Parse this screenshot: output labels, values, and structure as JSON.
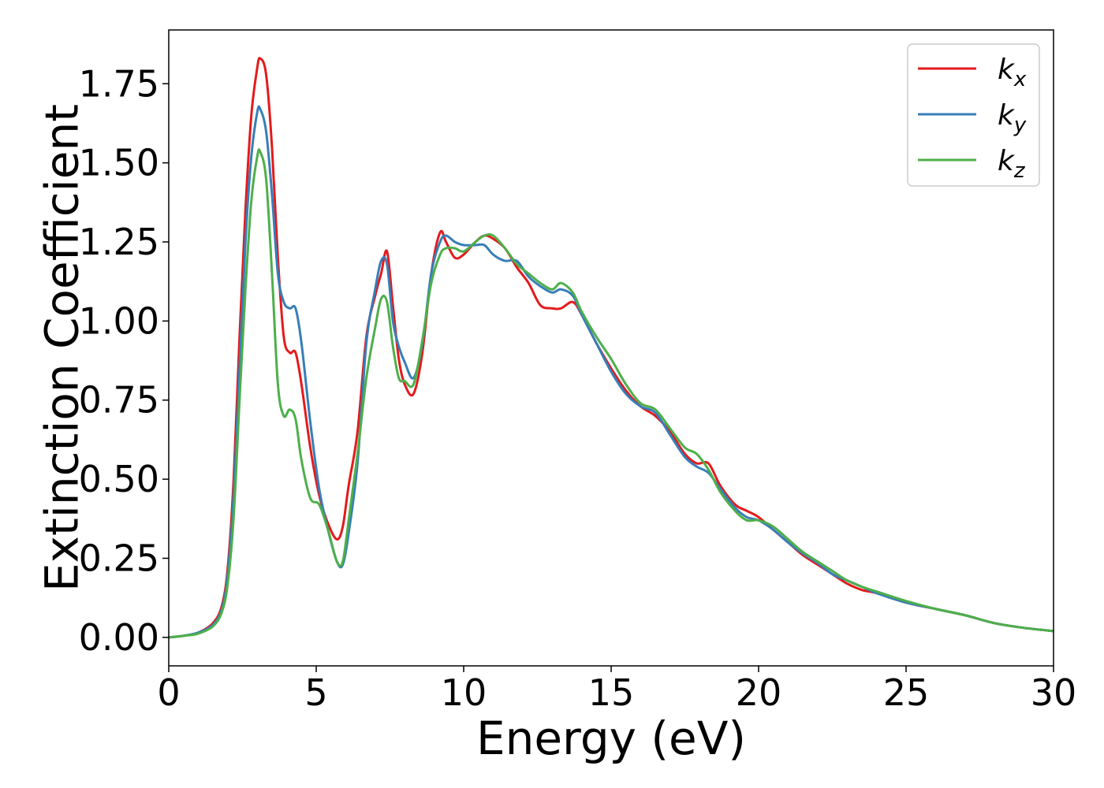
{
  "chart_data": {
    "type": "line",
    "title": "",
    "xlabel": "Energy (eV)",
    "ylabel": "Extinction Coefficient",
    "xlim": [
      0,
      30
    ],
    "ylim": [
      -0.09,
      1.92
    ],
    "xticks": [
      0,
      5,
      10,
      15,
      20,
      25,
      30
    ],
    "xtick_labels": [
      "0",
      "5",
      "10",
      "15",
      "20",
      "25",
      "30"
    ],
    "yticks": [
      0.0,
      0.25,
      0.5,
      0.75,
      1.0,
      1.25,
      1.5,
      1.75
    ],
    "ytick_labels": [
      "0.00",
      "0.25",
      "0.50",
      "0.75",
      "1.00",
      "1.25",
      "1.50",
      "1.75"
    ],
    "grid": false,
    "legend_position": "top-right",
    "series": [
      {
        "name": "k_x",
        "label_main": "k",
        "label_sub": "x",
        "color": "#e41a1c",
        "points": [
          [
            0,
            0
          ],
          [
            0.5,
            0.005
          ],
          [
            1.0,
            0.015
          ],
          [
            1.5,
            0.045
          ],
          [
            1.8,
            0.1
          ],
          [
            2.0,
            0.22
          ],
          [
            2.2,
            0.5
          ],
          [
            2.4,
            0.95
          ],
          [
            2.6,
            1.35
          ],
          [
            2.8,
            1.65
          ],
          [
            3.0,
            1.8
          ],
          [
            3.1,
            1.83
          ],
          [
            3.3,
            1.78
          ],
          [
            3.5,
            1.55
          ],
          [
            3.7,
            1.2
          ],
          [
            3.9,
            0.95
          ],
          [
            4.1,
            0.9
          ],
          [
            4.3,
            0.9
          ],
          [
            4.5,
            0.8
          ],
          [
            4.8,
            0.6
          ],
          [
            5.1,
            0.45
          ],
          [
            5.4,
            0.36
          ],
          [
            5.7,
            0.31
          ],
          [
            5.9,
            0.35
          ],
          [
            6.1,
            0.48
          ],
          [
            6.4,
            0.65
          ],
          [
            6.7,
            0.95
          ],
          [
            7.0,
            1.08
          ],
          [
            7.2,
            1.15
          ],
          [
            7.4,
            1.22
          ],
          [
            7.6,
            1.05
          ],
          [
            7.8,
            0.88
          ],
          [
            8.0,
            0.8
          ],
          [
            8.3,
            0.77
          ],
          [
            8.6,
            0.9
          ],
          [
            8.9,
            1.15
          ],
          [
            9.2,
            1.28
          ],
          [
            9.4,
            1.25
          ],
          [
            9.7,
            1.2
          ],
          [
            10.0,
            1.21
          ],
          [
            10.4,
            1.25
          ],
          [
            10.7,
            1.27
          ],
          [
            11.0,
            1.26
          ],
          [
            11.4,
            1.23
          ],
          [
            11.8,
            1.17
          ],
          [
            12.2,
            1.12
          ],
          [
            12.6,
            1.05
          ],
          [
            13.0,
            1.04
          ],
          [
            13.3,
            1.04
          ],
          [
            13.7,
            1.06
          ],
          [
            14.0,
            1.02
          ],
          [
            14.5,
            0.93
          ],
          [
            15.0,
            0.85
          ],
          [
            15.5,
            0.78
          ],
          [
            16.0,
            0.73
          ],
          [
            16.5,
            0.7
          ],
          [
            17.0,
            0.65
          ],
          [
            17.5,
            0.58
          ],
          [
            17.9,
            0.55
          ],
          [
            18.3,
            0.55
          ],
          [
            18.7,
            0.48
          ],
          [
            19.2,
            0.42
          ],
          [
            19.6,
            0.4
          ],
          [
            20.0,
            0.38
          ],
          [
            20.5,
            0.34
          ],
          [
            21.0,
            0.3
          ],
          [
            21.5,
            0.26
          ],
          [
            22.0,
            0.23
          ],
          [
            22.5,
            0.2
          ],
          [
            23.0,
            0.17
          ],
          [
            23.5,
            0.15
          ],
          [
            24.0,
            0.14
          ],
          [
            25.0,
            0.11
          ],
          [
            26.0,
            0.09
          ],
          [
            27.0,
            0.07
          ],
          [
            28.0,
            0.045
          ],
          [
            29.0,
            0.03
          ],
          [
            30.0,
            0.02
          ]
        ]
      },
      {
        "name": "k_y",
        "label_main": "k",
        "label_sub": "y",
        "color": "#377eb8",
        "points": [
          [
            0,
            0
          ],
          [
            0.5,
            0.005
          ],
          [
            1.0,
            0.015
          ],
          [
            1.5,
            0.04
          ],
          [
            1.8,
            0.09
          ],
          [
            2.0,
            0.2
          ],
          [
            2.2,
            0.45
          ],
          [
            2.4,
            0.85
          ],
          [
            2.6,
            1.25
          ],
          [
            2.8,
            1.52
          ],
          [
            3.0,
            1.66
          ],
          [
            3.1,
            1.67
          ],
          [
            3.3,
            1.6
          ],
          [
            3.5,
            1.4
          ],
          [
            3.7,
            1.15
          ],
          [
            3.9,
            1.06
          ],
          [
            4.1,
            1.04
          ],
          [
            4.3,
            1.04
          ],
          [
            4.5,
            0.93
          ],
          [
            4.8,
            0.68
          ],
          [
            5.1,
            0.47
          ],
          [
            5.4,
            0.34
          ],
          [
            5.7,
            0.24
          ],
          [
            5.9,
            0.23
          ],
          [
            6.1,
            0.33
          ],
          [
            6.4,
            0.55
          ],
          [
            6.7,
            0.93
          ],
          [
            7.0,
            1.1
          ],
          [
            7.2,
            1.19
          ],
          [
            7.4,
            1.18
          ],
          [
            7.6,
            1.0
          ],
          [
            7.8,
            0.92
          ],
          [
            8.0,
            0.87
          ],
          [
            8.3,
            0.82
          ],
          [
            8.6,
            0.93
          ],
          [
            8.9,
            1.15
          ],
          [
            9.2,
            1.25
          ],
          [
            9.4,
            1.27
          ],
          [
            9.7,
            1.25
          ],
          [
            10.0,
            1.24
          ],
          [
            10.4,
            1.24
          ],
          [
            10.7,
            1.24
          ],
          [
            11.0,
            1.21
          ],
          [
            11.4,
            1.19
          ],
          [
            11.8,
            1.19
          ],
          [
            12.2,
            1.14
          ],
          [
            12.6,
            1.11
          ],
          [
            13.0,
            1.09
          ],
          [
            13.3,
            1.1
          ],
          [
            13.7,
            1.08
          ],
          [
            14.0,
            1.02
          ],
          [
            14.5,
            0.93
          ],
          [
            15.0,
            0.84
          ],
          [
            15.5,
            0.77
          ],
          [
            16.0,
            0.73
          ],
          [
            16.5,
            0.71
          ],
          [
            17.0,
            0.64
          ],
          [
            17.5,
            0.57
          ],
          [
            17.9,
            0.54
          ],
          [
            18.3,
            0.52
          ],
          [
            18.7,
            0.47
          ],
          [
            19.2,
            0.41
          ],
          [
            19.6,
            0.38
          ],
          [
            20.0,
            0.37
          ],
          [
            20.5,
            0.34
          ],
          [
            21.0,
            0.3
          ],
          [
            21.5,
            0.265
          ],
          [
            22.0,
            0.235
          ],
          [
            22.5,
            0.2
          ],
          [
            23.0,
            0.18
          ],
          [
            23.5,
            0.16
          ],
          [
            24.0,
            0.14
          ],
          [
            25.0,
            0.11
          ],
          [
            26.0,
            0.09
          ],
          [
            27.0,
            0.07
          ],
          [
            28.0,
            0.045
          ],
          [
            29.0,
            0.03
          ],
          [
            30.0,
            0.02
          ]
        ]
      },
      {
        "name": "k_z",
        "label_main": "k",
        "label_sub": "z",
        "color": "#4daf4a",
        "points": [
          [
            0,
            0
          ],
          [
            0.5,
            0.005
          ],
          [
            1.0,
            0.012
          ],
          [
            1.5,
            0.035
          ],
          [
            1.8,
            0.08
          ],
          [
            2.0,
            0.17
          ],
          [
            2.2,
            0.38
          ],
          [
            2.4,
            0.75
          ],
          [
            2.6,
            1.1
          ],
          [
            2.8,
            1.38
          ],
          [
            3.0,
            1.52
          ],
          [
            3.1,
            1.535
          ],
          [
            3.3,
            1.45
          ],
          [
            3.5,
            1.15
          ],
          [
            3.7,
            0.8
          ],
          [
            3.9,
            0.7
          ],
          [
            4.1,
            0.72
          ],
          [
            4.3,
            0.69
          ],
          [
            4.5,
            0.56
          ],
          [
            4.8,
            0.44
          ],
          [
            5.1,
            0.42
          ],
          [
            5.4,
            0.34
          ],
          [
            5.7,
            0.24
          ],
          [
            5.9,
            0.24
          ],
          [
            6.1,
            0.37
          ],
          [
            6.4,
            0.58
          ],
          [
            6.7,
            0.82
          ],
          [
            7.0,
            0.98
          ],
          [
            7.2,
            1.07
          ],
          [
            7.4,
            1.06
          ],
          [
            7.6,
            0.92
          ],
          [
            7.8,
            0.82
          ],
          [
            8.0,
            0.81
          ],
          [
            8.3,
            0.8
          ],
          [
            8.6,
            0.94
          ],
          [
            8.9,
            1.12
          ],
          [
            9.2,
            1.21
          ],
          [
            9.4,
            1.23
          ],
          [
            9.7,
            1.23
          ],
          [
            10.0,
            1.22
          ],
          [
            10.4,
            1.25
          ],
          [
            10.7,
            1.27
          ],
          [
            11.0,
            1.27
          ],
          [
            11.4,
            1.23
          ],
          [
            11.8,
            1.18
          ],
          [
            12.2,
            1.15
          ],
          [
            12.6,
            1.12
          ],
          [
            13.0,
            1.1
          ],
          [
            13.3,
            1.12
          ],
          [
            13.7,
            1.09
          ],
          [
            14.0,
            1.03
          ],
          [
            14.5,
            0.95
          ],
          [
            15.0,
            0.88
          ],
          [
            15.5,
            0.8
          ],
          [
            16.0,
            0.74
          ],
          [
            16.5,
            0.72
          ],
          [
            17.0,
            0.66
          ],
          [
            17.5,
            0.6
          ],
          [
            17.9,
            0.58
          ],
          [
            18.3,
            0.53
          ],
          [
            18.7,
            0.46
          ],
          [
            19.2,
            0.4
          ],
          [
            19.6,
            0.37
          ],
          [
            20.0,
            0.37
          ],
          [
            20.5,
            0.35
          ],
          [
            21.0,
            0.31
          ],
          [
            21.5,
            0.27
          ],
          [
            22.0,
            0.24
          ],
          [
            22.5,
            0.21
          ],
          [
            23.0,
            0.18
          ],
          [
            23.5,
            0.16
          ],
          [
            24.0,
            0.145
          ],
          [
            25.0,
            0.115
          ],
          [
            26.0,
            0.09
          ],
          [
            27.0,
            0.07
          ],
          [
            28.0,
            0.045
          ],
          [
            29.0,
            0.03
          ],
          [
            30.0,
            0.02
          ]
        ]
      }
    ]
  }
}
